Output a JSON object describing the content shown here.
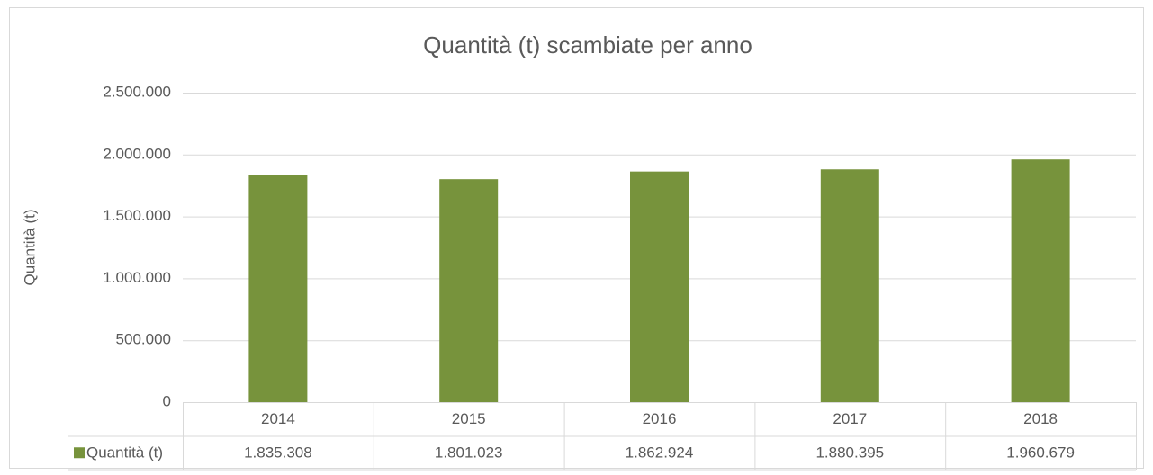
{
  "chart_data": {
    "type": "bar",
    "title": "Quantità (t) scambiate per anno",
    "y_label": "Quantità (t)",
    "categories": [
      "2014",
      "2015",
      "2016",
      "2017",
      "2018"
    ],
    "series": [
      {
        "name": "Quantità (t)",
        "color": "#77933c",
        "values": [
          1835308,
          1801023,
          1862924,
          1880395,
          1960679
        ],
        "value_labels": [
          "1.835.308",
          "1.801.023",
          "1.862.924",
          "1.880.395",
          "1.960.679"
        ]
      }
    ],
    "ylim": [
      0,
      2500000
    ],
    "yticks": [
      0,
      {
        "value": 500000,
        "label": "500.000"
      },
      {
        "value": 1000000,
        "label": "1.000.000"
      },
      {
        "value": 1500000,
        "label": "1.500.000"
      },
      {
        "value": 2000000,
        "label": "2.000.000"
      },
      {
        "value": 2500000,
        "label": "2.500.000"
      }
    ],
    "grid": true,
    "data_table": true
  }
}
